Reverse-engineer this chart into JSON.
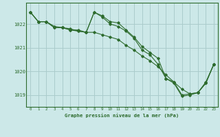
{
  "title": "Graphe pression niveau de la mer (hPa)",
  "background_color": "#cce8e8",
  "grid_color": "#aacccc",
  "line_color": "#2d6b2d",
  "xlim": [
    -0.5,
    23.5
  ],
  "ylim": [
    1018.5,
    1022.9
  ],
  "yticks": [
    1019,
    1020,
    1021,
    1022
  ],
  "xticks": [
    0,
    1,
    2,
    3,
    4,
    5,
    6,
    7,
    8,
    9,
    10,
    11,
    12,
    13,
    14,
    15,
    16,
    17,
    18,
    19,
    20,
    21,
    22,
    23
  ],
  "line1_x": [
    0,
    1,
    2,
    3,
    4,
    5,
    6,
    7,
    8,
    9,
    10,
    11,
    12,
    13,
    14,
    15,
    16,
    17,
    18,
    19,
    20,
    21,
    22,
    23
  ],
  "line1_y": [
    1022.5,
    1022.1,
    1022.1,
    1021.85,
    1021.85,
    1021.75,
    1021.7,
    1021.65,
    1022.5,
    1022.35,
    1022.1,
    1022.05,
    1021.75,
    1021.45,
    1021.05,
    1020.8,
    1020.55,
    1019.7,
    1019.55,
    1019.0,
    1019.05,
    1019.1,
    1019.5,
    1020.3
  ],
  "line2_x": [
    0,
    1,
    2,
    3,
    4,
    5,
    6,
    7,
    8,
    9,
    10,
    11,
    12,
    13,
    14,
    15,
    16,
    17,
    18,
    19,
    20,
    21,
    22,
    23
  ],
  "line2_y": [
    1022.5,
    1022.1,
    1022.1,
    1021.85,
    1021.85,
    1021.75,
    1021.75,
    1021.65,
    1021.65,
    1021.55,
    1021.45,
    1021.35,
    1021.1,
    1020.9,
    1020.65,
    1020.45,
    1020.2,
    1019.85,
    1019.55,
    1019.25,
    1019.05,
    1019.1,
    1019.55,
    1020.3
  ],
  "line3_x": [
    0,
    1,
    2,
    3,
    4,
    5,
    6,
    7,
    8,
    9,
    10,
    11,
    12,
    13,
    14,
    15,
    16,
    17,
    18,
    19,
    20,
    21,
    22,
    23
  ],
  "line3_y": [
    1022.5,
    1022.1,
    1022.1,
    1021.9,
    1021.85,
    1021.8,
    1021.7,
    1021.65,
    1022.5,
    1022.3,
    1022.0,
    1021.9,
    1021.7,
    1021.4,
    1020.9,
    1020.7,
    1020.3,
    1019.7,
    1019.5,
    1018.95,
    1019.0,
    1019.1,
    1019.5,
    1020.3
  ]
}
